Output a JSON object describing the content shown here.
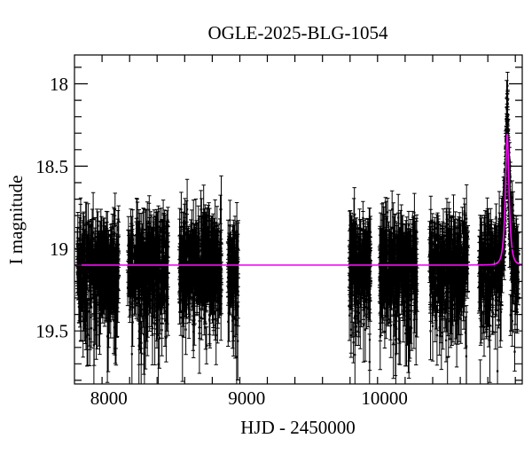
{
  "chart_data": {
    "type": "scatter",
    "title": "OGLE-2025-BLG-1054",
    "xlabel": "HJD - 2450000",
    "ylabel": "I magnitude",
    "xlim": [
      7750,
      11000
    ],
    "ylim": [
      17.825,
      19.822
    ],
    "y_axis_inverted_magnitude": true,
    "x_major_ticks": [
      8000,
      9000,
      10000
    ],
    "x_minor_step": 200,
    "y_major_ticks": [
      18,
      18.5,
      19,
      19.5
    ],
    "y_minor_step": 0.1,
    "grid": false,
    "legend": null,
    "colors": {
      "background": "#ffffff",
      "frame": "#000000",
      "data_points": "#000000",
      "model_curve": "#f50df5"
    },
    "baseline_mag": 19.1,
    "scatter_sigma": 0.125,
    "outlier_fraction": 0.09,
    "seasons": [
      {
        "name": "season-1",
        "t_start": 7769,
        "t_end": 8072,
        "n": 470
      },
      {
        "name": "season-2",
        "t_start": 8136,
        "t_end": 8432,
        "n": 450
      },
      {
        "name": "season-3",
        "t_start": 8509,
        "t_end": 8818,
        "n": 460
      },
      {
        "name": "season-4",
        "t_start": 8863,
        "t_end": 8940,
        "n": 110
      },
      {
        "name": "season-5",
        "t_start": 9745,
        "t_end": 9899,
        "n": 280
      },
      {
        "name": "season-6",
        "t_start": 9964,
        "t_end": 10240,
        "n": 410
      },
      {
        "name": "season-7",
        "t_start": 10324,
        "t_end": 10607,
        "n": 400
      },
      {
        "name": "season-8",
        "t_start": 10684,
        "t_end": 10974,
        "n": 430
      }
    ],
    "peak_sampling": {
      "t_start": 10866,
      "t_end": 10926,
      "n": 165,
      "sigma": 0.045
    },
    "model": {
      "type": "paczynski_microlensing",
      "t0": 10891,
      "tE": 22,
      "u0": 0.53,
      "I0": 19.1,
      "peak_mag": 18.3
    },
    "seed": 20251054
  }
}
